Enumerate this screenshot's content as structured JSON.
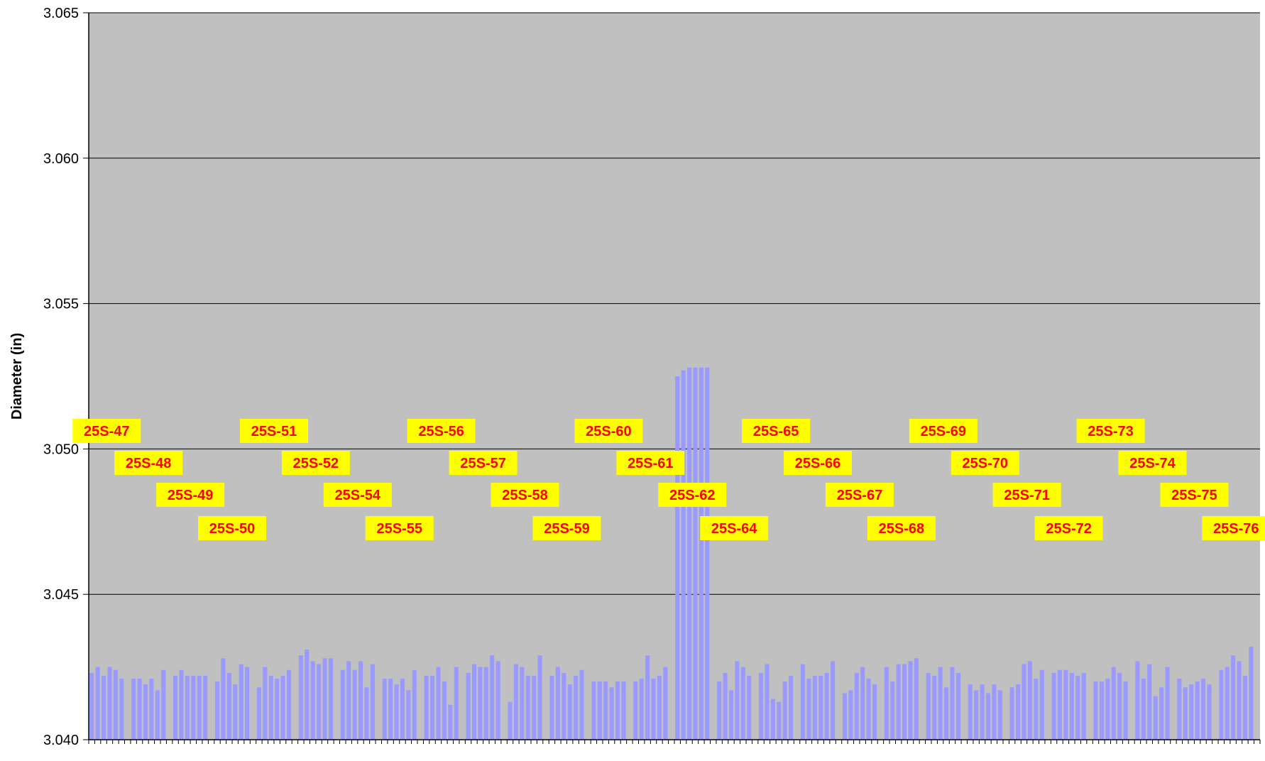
{
  "chart_data": {
    "type": "bar",
    "ylabel": "Diameter (in)",
    "xlabel": "",
    "ylim": [
      3.04,
      3.065
    ],
    "yticks": [
      "3.040",
      "3.045",
      "3.050",
      "3.055",
      "3.060",
      "3.065"
    ],
    "grid": true,
    "colors": {
      "plot_bg": "#c0c0c0",
      "bar": "#9999ff",
      "label_bg": "#ffff00",
      "label_text": "#ff0000",
      "grid": "#000000"
    },
    "groups": [
      {
        "name": "25S-47",
        "values": [
          3.0423,
          3.0425,
          3.0422,
          3.0425,
          3.0424,
          3.0421
        ]
      },
      {
        "name": "25S-48",
        "values": [
          3.0421,
          3.0421,
          3.0419,
          3.0421,
          3.0417,
          3.0424
        ]
      },
      {
        "name": "25S-49",
        "values": [
          3.0422,
          3.0424,
          3.0422,
          3.0422,
          3.0422,
          3.0422
        ]
      },
      {
        "name": "25S-50",
        "values": [
          3.042,
          3.0428,
          3.0423,
          3.0419,
          3.0426,
          3.0425
        ]
      },
      {
        "name": "25S-51",
        "values": [
          3.0418,
          3.0425,
          3.0422,
          3.0421,
          3.0422,
          3.0424
        ]
      },
      {
        "name": "25S-52",
        "values": [
          3.0429,
          3.0431,
          3.0427,
          3.0426,
          3.0428,
          3.0428
        ]
      },
      {
        "name": "25S-54",
        "values": [
          3.0424,
          3.0427,
          3.0424,
          3.0427,
          3.0418,
          3.0426
        ]
      },
      {
        "name": "25S-55",
        "values": [
          3.0421,
          3.0421,
          3.0419,
          3.0421,
          3.0417,
          3.0424
        ]
      },
      {
        "name": "25S-56",
        "values": [
          3.0422,
          3.0422,
          3.0425,
          3.042,
          3.0412,
          3.0425
        ]
      },
      {
        "name": "25S-57",
        "values": [
          3.0423,
          3.0426,
          3.0425,
          3.0425,
          3.0429,
          3.0427
        ]
      },
      {
        "name": "25S-58",
        "values": [
          3.0413,
          3.0426,
          3.0425,
          3.0422,
          3.0422,
          3.0429
        ]
      },
      {
        "name": "25S-59",
        "values": [
          3.0422,
          3.0425,
          3.0423,
          3.0419,
          3.0422,
          3.0424
        ]
      },
      {
        "name": "25S-60",
        "values": [
          3.042,
          3.042,
          3.042,
          3.0418,
          3.042,
          3.042
        ]
      },
      {
        "name": "25S-61",
        "values": [
          3.042,
          3.0421,
          3.0429,
          3.0421,
          3.0422,
          3.0425
        ]
      },
      {
        "name": "25S-62",
        "values": [
          3.0525,
          3.0527,
          3.0528,
          3.0528,
          3.0528,
          3.0528
        ]
      },
      {
        "name": "25S-64",
        "values": [
          3.042,
          3.0423,
          3.0417,
          3.0427,
          3.0425,
          3.0422
        ]
      },
      {
        "name": "25S-65",
        "values": [
          3.0423,
          3.0426,
          3.0414,
          3.0413,
          3.042,
          3.0422
        ]
      },
      {
        "name": "25S-66",
        "values": [
          3.0426,
          3.0421,
          3.0422,
          3.0422,
          3.0423,
          3.0427
        ]
      },
      {
        "name": "25S-67",
        "values": [
          3.0416,
          3.0417,
          3.0423,
          3.0425,
          3.0421,
          3.0419
        ]
      },
      {
        "name": "25S-68",
        "values": [
          3.0425,
          3.042,
          3.0426,
          3.0426,
          3.0427,
          3.0428
        ]
      },
      {
        "name": "25S-69",
        "values": [
          3.0423,
          3.0422,
          3.0425,
          3.0418,
          3.0425,
          3.0423
        ]
      },
      {
        "name": "25S-70",
        "values": [
          3.0419,
          3.0417,
          3.0419,
          3.0416,
          3.0419,
          3.0417
        ]
      },
      {
        "name": "25S-71",
        "values": [
          3.0418,
          3.0419,
          3.0426,
          3.0427,
          3.0421,
          3.0424
        ]
      },
      {
        "name": "25S-72",
        "values": [
          3.0423,
          3.0424,
          3.0424,
          3.0423,
          3.0422,
          3.0423
        ]
      },
      {
        "name": "25S-73",
        "values": [
          3.042,
          3.042,
          3.0421,
          3.0425,
          3.0423,
          3.042
        ]
      },
      {
        "name": "25S-74",
        "values": [
          3.0427,
          3.0421,
          3.0426,
          3.0415,
          3.0418,
          3.0425
        ]
      },
      {
        "name": "25S-75",
        "values": [
          3.0421,
          3.0418,
          3.0419,
          3.042,
          3.0421,
          3.0419
        ]
      },
      {
        "name": "25S-76",
        "values": [
          3.0424,
          3.0425,
          3.0429,
          3.0427,
          3.0422,
          3.0432
        ]
      }
    ]
  }
}
